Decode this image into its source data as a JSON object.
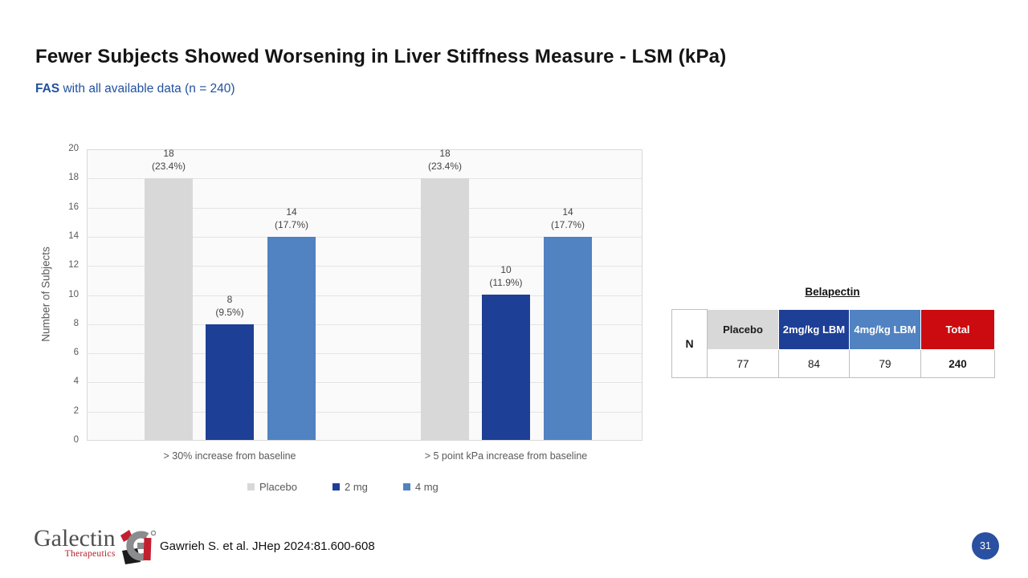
{
  "slide": {
    "title": "Fewer Subjects Showed Worsening in Liver Stiffness Measure - LSM (kPa)",
    "subtitle": {
      "lead": "FAS",
      "rest": " with all available data (n = 240)"
    },
    "citation": "Gawrieh S. et al. JHep 2024:81.600-608",
    "page_number": "31"
  },
  "logo": {
    "name": "Galectin",
    "sub": "Therapeutics"
  },
  "chart_data": {
    "type": "bar",
    "title": "",
    "xlabel": "",
    "ylabel": "Number of Subjects",
    "ylim": [
      0,
      20
    ],
    "ytick_step": 2,
    "grid": true,
    "legend_position": "bottom",
    "categories": [
      "> 30% increase from baseline",
      "> 5 point kPa increase from baseline"
    ],
    "series": [
      {
        "name": "Placebo",
        "color": "#D8D8D8",
        "values": [
          18,
          18
        ],
        "pct_labels": [
          "(23.4%)",
          "(23.4%)"
        ]
      },
      {
        "name": "2 mg",
        "color": "#1E3F96",
        "values": [
          8,
          10
        ],
        "pct_labels": [
          "(9.5%)",
          "(11.9%)"
        ]
      },
      {
        "name": "4 mg",
        "color": "#5182C1",
        "values": [
          14,
          14
        ],
        "pct_labels": [
          "(17.7%)",
          "(17.7%)"
        ]
      }
    ]
  },
  "table": {
    "title": "Belapectin",
    "row_label": "N",
    "columns": [
      {
        "label": "Placebo",
        "value": "77",
        "bg": "#D8D8D8",
        "fg": "#1A1A1A",
        "bold_value": false
      },
      {
        "label": "2mg/kg LBM",
        "value": "84",
        "bg": "#1E3F96",
        "fg": "#FFFFFF",
        "bold_value": false
      },
      {
        "label": "4mg/kg LBM",
        "value": "79",
        "bg": "#5182C1",
        "fg": "#FFFFFF",
        "bold_value": false
      },
      {
        "label": "Total",
        "value": "240",
        "bg": "#CB0B0F",
        "fg": "#FFFFFF",
        "bold_value": true
      }
    ]
  },
  "colors": {
    "subtitle_blue": "#21519E",
    "page_circle_blue": "#2A50A2",
    "axis_text_gray": "#595959",
    "bar_label_gray": "#444444",
    "plot_background": "#FAFAFA",
    "gridline": "#E4E4E4"
  }
}
